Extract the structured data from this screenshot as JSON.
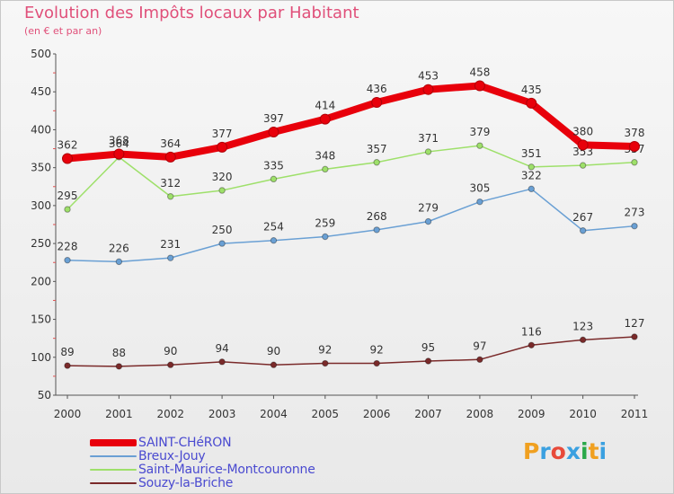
{
  "chart_data": {
    "type": "line",
    "title": "Evolution des Impôts locaux par Habitant",
    "subtitle": "(en € et par an)",
    "x": [
      "2000",
      "2001",
      "2002",
      "2003",
      "2004",
      "2005",
      "2006",
      "2007",
      "2008",
      "2009",
      "2010",
      "2011"
    ],
    "ylim": [
      50,
      500
    ],
    "yticks": [
      50,
      100,
      150,
      200,
      250,
      300,
      350,
      400,
      450,
      500
    ],
    "grid": false,
    "legend": "bottom-left",
    "series": [
      {
        "name": "SAINT-CHéRON",
        "color": "#e8000b",
        "values": [
          362,
          368,
          364,
          377,
          397,
          414,
          436,
          453,
          458,
          435,
          380,
          378
        ]
      },
      {
        "name": "Breux-Jouy",
        "color": "#6aa0d4",
        "values": [
          228,
          226,
          231,
          250,
          254,
          259,
          268,
          279,
          305,
          322,
          267,
          273
        ]
      },
      {
        "name": "Saint-Maurice-Montcouronne",
        "color": "#9ee06a",
        "values": [
          295,
          364,
          312,
          320,
          335,
          348,
          357,
          371,
          379,
          351,
          353,
          357
        ]
      },
      {
        "name": "Souzy-la-Briche",
        "color": "#7a2a2a",
        "values": [
          89,
          88,
          90,
          94,
          90,
          92,
          92,
          95,
          97,
          116,
          123,
          127
        ]
      }
    ]
  },
  "logo": {
    "text": "Proxiti",
    "letters": [
      {
        "ch": "P",
        "color": "#f0a020"
      },
      {
        "ch": "r",
        "color": "#3aa0e0"
      },
      {
        "ch": "o",
        "color": "#e84a3a"
      },
      {
        "ch": "x",
        "color": "#3aa0e0"
      },
      {
        "ch": "i",
        "color": "#2aa84a"
      },
      {
        "ch": "t",
        "color": "#f0a020"
      },
      {
        "ch": "i",
        "color": "#3aa0e0"
      }
    ]
  }
}
